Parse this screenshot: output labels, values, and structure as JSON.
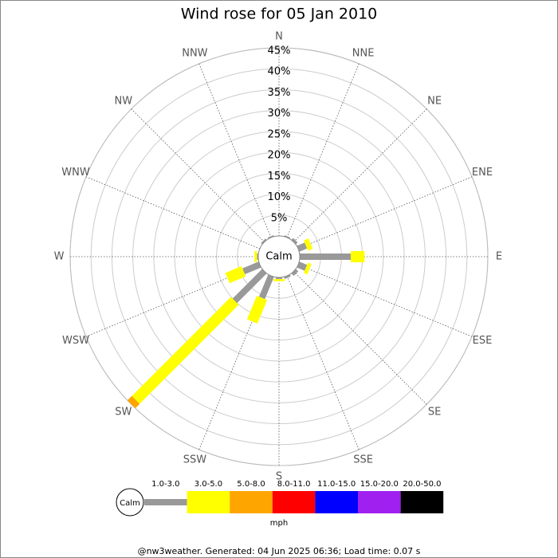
{
  "chart_data": {
    "type": "windrose",
    "title": "Wind rose for 05 Jan 2010",
    "categories": [
      "N",
      "NNE",
      "NE",
      "ENE",
      "E",
      "ESE",
      "SE",
      "SSE",
      "S",
      "SSW",
      "SW",
      "WSW",
      "W",
      "WNW",
      "NW",
      "NNW"
    ],
    "series": [
      {
        "name": "1.0-3.0",
        "color": "#999999",
        "values": [
          0,
          0.3,
          0.6,
          2,
          12.2,
          2,
          0.8,
          0.5,
          0.4,
          5.7,
          10,
          4.2,
          0.3,
          0,
          0.4,
          0.3
        ]
      },
      {
        "name": "3.0-5.0",
        "color": "#ffff00",
        "values": [
          0,
          0,
          0,
          1.2,
          3.3,
          0.9,
          0,
          0,
          0.5,
          6.1,
          33.5,
          4.2,
          0.6,
          0,
          0,
          0
        ]
      },
      {
        "name": "5.0-8.0",
        "color": "#ffa500",
        "values": [
          0,
          0,
          0,
          0,
          0,
          0,
          0,
          0,
          0,
          0,
          1.5,
          0,
          0,
          0,
          0,
          0
        ]
      },
      {
        "name": "8.0-11.0",
        "color": "#ff0000",
        "values": [
          0,
          0,
          0,
          0,
          0,
          0,
          0,
          0,
          0,
          0,
          0,
          0,
          0,
          0,
          0,
          0
        ]
      },
      {
        "name": "11.0-15.0",
        "color": "#0000ff",
        "values": [
          0,
          0,
          0,
          0,
          0,
          0,
          0,
          0,
          0,
          0,
          0,
          0,
          0,
          0,
          0,
          0
        ]
      },
      {
        "name": "15.0-20.0",
        "color": "#a020f0",
        "values": [
          0,
          0,
          0,
          0,
          0,
          0,
          0,
          0,
          0,
          0,
          0,
          0,
          0,
          0,
          0,
          0
        ]
      },
      {
        "name": "20.0-50.0",
        "color": "#000000",
        "values": [
          0,
          0,
          0,
          0,
          0,
          0,
          0,
          0,
          0,
          0,
          0,
          0,
          0,
          0,
          0,
          0
        ]
      }
    ],
    "rlim": [
      0,
      45
    ],
    "rticks": [
      {
        "value": 5,
        "label": "5%"
      },
      {
        "value": 10,
        "label": "10%"
      },
      {
        "value": 15,
        "label": "15%"
      },
      {
        "value": 20,
        "label": "20%"
      },
      {
        "value": 25,
        "label": "25%"
      },
      {
        "value": 30,
        "label": "30%"
      },
      {
        "value": 35,
        "label": "35%"
      },
      {
        "value": 40,
        "label": "40%"
      },
      {
        "value": 45,
        "label": "45%"
      }
    ],
    "calm_label": "Calm",
    "legend_unit": "mph",
    "footer": "@nw3weather. Generated: 04 Jun 2025 06:36; Load time: 0.07 s"
  }
}
